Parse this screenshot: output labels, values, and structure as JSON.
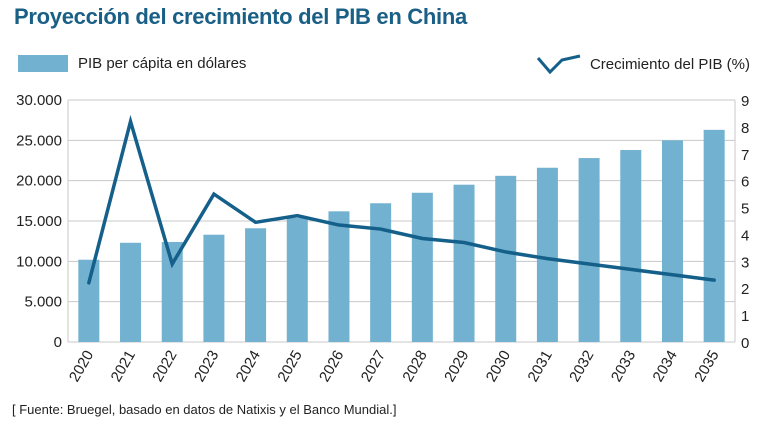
{
  "title": "Proyección del crecimiento del PIB en China",
  "source": "[ Fuente: Bruegel, basado en datos de Natixis y el Banco Mundial.]",
  "colors": {
    "bar": "#72b1d0",
    "line": "#14608a",
    "title": "#1a5f86",
    "grid": "#c8c8c8"
  },
  "chart_data": {
    "type": "bar+line",
    "categories": [
      "2020",
      "2021",
      "2022",
      "2023",
      "2024",
      "2025",
      "2026",
      "2027",
      "2028",
      "2029",
      "2030",
      "2031",
      "2032",
      "2033",
      "2034",
      "2035"
    ],
    "series": [
      {
        "name": "PIB per cápita en dólares",
        "type": "bar",
        "axis": "left",
        "values": [
          10200,
          12300,
          12400,
          13300,
          14100,
          15400,
          16200,
          17200,
          18500,
          19500,
          20600,
          21600,
          22800,
          23800,
          25000,
          26300
        ]
      },
      {
        "name": "Crecimiento del PIB (%)",
        "type": "line",
        "axis": "right",
        "values": [
          2.2,
          8.2,
          2.9,
          5.5,
          4.45,
          4.7,
          4.35,
          4.2,
          3.85,
          3.7,
          3.35,
          3.1,
          2.9,
          2.7,
          2.5,
          2.3
        ]
      }
    ],
    "left_axis": {
      "ylim": [
        0,
        30000
      ],
      "ticks": [
        "0",
        "5.000",
        "10.000",
        "15.000",
        "20.000",
        "25.000",
        "30.000"
      ]
    },
    "right_axis": {
      "ylim": [
        0,
        9
      ],
      "ticks": [
        "0",
        "1",
        "2",
        "3",
        "4",
        "5",
        "6",
        "7",
        "8",
        "9"
      ]
    },
    "grid": true,
    "legend": "top"
  }
}
